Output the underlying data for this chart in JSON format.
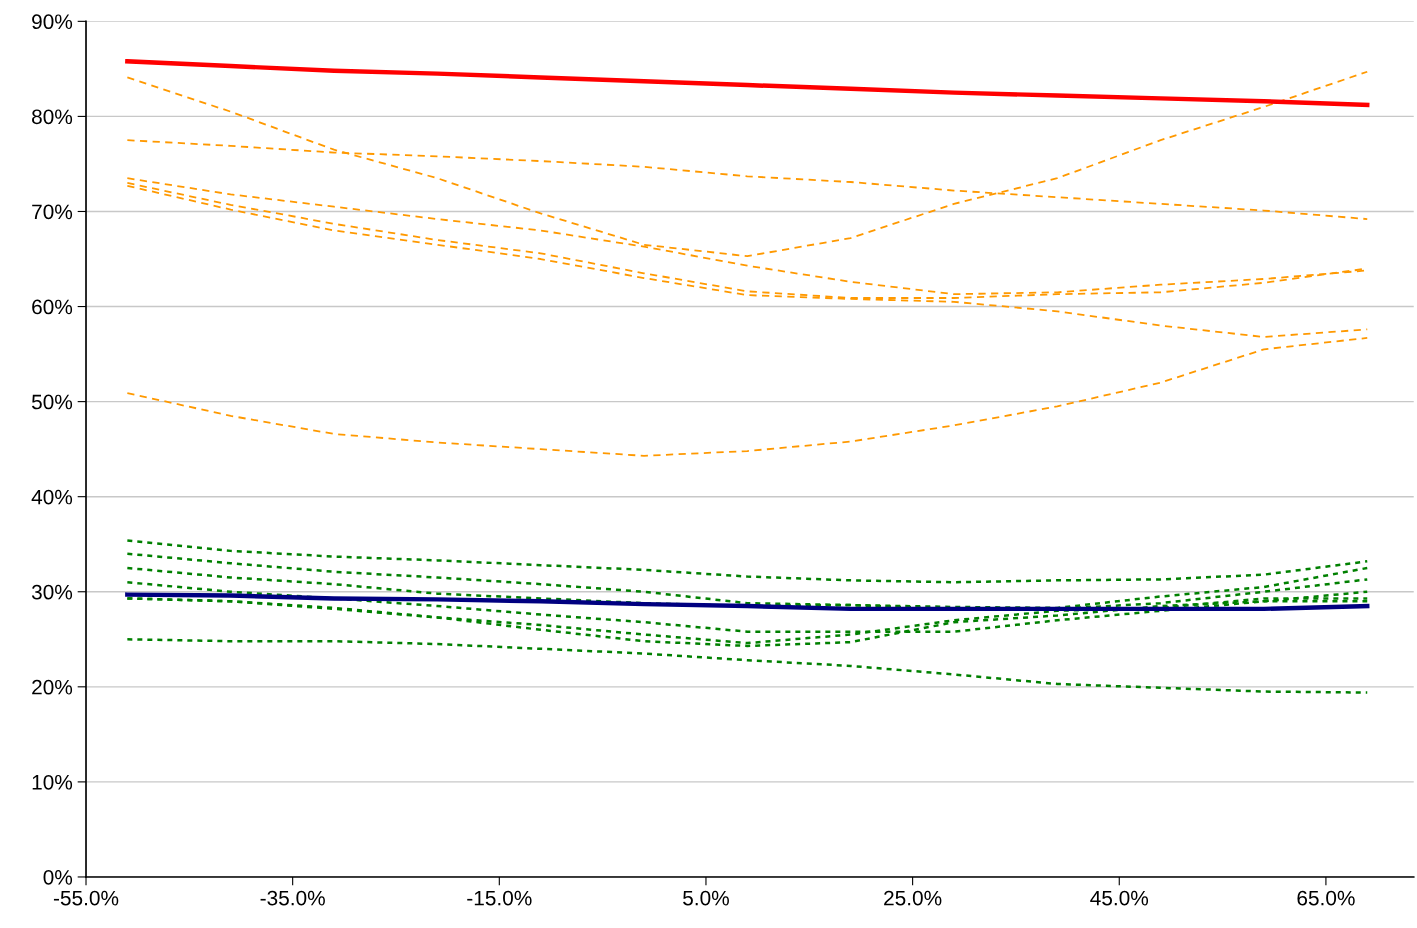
{
  "chart_data": {
    "type": "line",
    "x": [
      -51,
      -41,
      -31,
      -21,
      -11,
      -1,
      9,
      19,
      29,
      39,
      49,
      59,
      69
    ],
    "xlim": [
      -55,
      73.5
    ],
    "xticks": [
      {
        "value": -55,
        "label": "-55.0%"
      },
      {
        "value": -35,
        "label": "-35.0%"
      },
      {
        "value": -15,
        "label": "-15.0%"
      },
      {
        "value": 5,
        "label": "5.0%"
      },
      {
        "value": 25,
        "label": "25.0%"
      },
      {
        "value": 45,
        "label": "45.0%"
      },
      {
        "value": 65,
        "label": "65.0%"
      }
    ],
    "ylim": [
      0,
      90
    ],
    "yticks": [
      {
        "value": 0,
        "label": "0%"
      },
      {
        "value": 10,
        "label": "10%"
      },
      {
        "value": 20,
        "label": "20%"
      },
      {
        "value": 30,
        "label": "30%"
      },
      {
        "value": 40,
        "label": "40%"
      },
      {
        "value": 50,
        "label": "50%"
      },
      {
        "value": 60,
        "label": "60%"
      },
      {
        "value": 70,
        "label": "70%"
      },
      {
        "value": 80,
        "label": "80%"
      },
      {
        "value": 90,
        "label": "90%"
      }
    ],
    "grid": "y",
    "marker": "none",
    "series": [
      {
        "color": "#ff9900",
        "line_style": "dashed",
        "values": [
          84.1,
          80.5,
          76.5,
          73.5,
          69.8,
          66.5,
          65.3,
          67.2,
          70.8,
          73.5,
          77.5,
          81.0,
          84.7
        ]
      },
      {
        "color": "#ff9900",
        "line_style": "dashed",
        "values": [
          77.5,
          76.9,
          76.2,
          75.8,
          75.3,
          74.7,
          73.7,
          73.1,
          72.2,
          71.5,
          70.8,
          70.1,
          69.2
        ]
      },
      {
        "color": "#ff9900",
        "line_style": "dashed",
        "values": [
          73.5,
          71.8,
          70.5,
          69.2,
          68.0,
          66.3,
          64.3,
          62.6,
          61.3,
          61.5,
          62.3,
          62.9,
          63.8
        ]
      },
      {
        "color": "#ff9900",
        "line_style": "dashed",
        "values": [
          73.0,
          70.7,
          68.7,
          67.0,
          65.6,
          63.5,
          61.6,
          60.9,
          60.9,
          61.3,
          61.5,
          62.5,
          64.0
        ]
      },
      {
        "color": "#ff9900",
        "line_style": "dashed",
        "values": [
          72.7,
          70.2,
          68.0,
          66.5,
          65.0,
          63.0,
          61.2,
          60.8,
          60.5,
          59.5,
          58.0,
          56.8,
          57.6
        ]
      },
      {
        "color": "#ff9900",
        "line_style": "dashed",
        "values": [
          50.9,
          48.5,
          46.6,
          45.7,
          45.0,
          44.3,
          44.8,
          45.8,
          47.5,
          49.5,
          52.0,
          55.5,
          56.7
        ]
      },
      {
        "color": "#008000",
        "line_style": "dotted",
        "values": [
          35.4,
          34.3,
          33.7,
          33.3,
          32.8,
          32.3,
          31.6,
          31.2,
          31.0,
          31.2,
          31.3,
          31.8,
          33.2
        ]
      },
      {
        "color": "#008000",
        "line_style": "dotted",
        "values": [
          34.0,
          33.0,
          32.1,
          31.5,
          30.8,
          30.0,
          28.8,
          28.6,
          28.4,
          28.3,
          29.5,
          30.5,
          32.5
        ]
      },
      {
        "color": "#008000",
        "line_style": "dotted",
        "values": [
          32.5,
          31.5,
          30.8,
          29.8,
          29.3,
          28.8,
          28.5,
          28.6,
          28.2,
          28.2,
          28.8,
          30.0,
          31.3
        ]
      },
      {
        "color": "#008000",
        "line_style": "dotted",
        "values": [
          31.0,
          30.0,
          29.3,
          28.5,
          27.6,
          26.8,
          25.8,
          25.8,
          25.8,
          27.0,
          28.0,
          29.0,
          30.0
        ]
      },
      {
        "color": "#008000",
        "line_style": "dotted",
        "values": [
          29.3,
          29.0,
          28.3,
          27.3,
          26.5,
          25.5,
          24.6,
          25.5,
          27.0,
          28.0,
          28.3,
          29.3,
          29.3
        ]
      },
      {
        "color": "#008000",
        "line_style": "dotted",
        "values": [
          29.3,
          29.0,
          28.2,
          27.3,
          26.0,
          24.8,
          24.3,
          24.7,
          26.8,
          27.5,
          28.5,
          29.0,
          29.0
        ]
      },
      {
        "color": "#008000",
        "line_style": "dotted",
        "values": [
          25.0,
          24.8,
          24.8,
          24.5,
          24.0,
          23.5,
          22.8,
          22.2,
          21.3,
          20.3,
          19.9,
          19.5,
          19.4
        ]
      },
      {
        "color": "#ff0000",
        "line_style": "solid",
        "values": [
          85.8,
          85.3,
          84.8,
          84.5,
          84.1,
          83.7,
          83.3,
          82.9,
          82.5,
          82.2,
          81.9,
          81.6,
          81.2
        ]
      },
      {
        "color": "#000080",
        "line_style": "solid",
        "values": [
          29.7,
          29.6,
          29.3,
          29.2,
          29.0,
          28.7,
          28.5,
          28.2,
          28.2,
          28.2,
          28.2,
          28.2,
          28.5
        ]
      }
    ]
  }
}
